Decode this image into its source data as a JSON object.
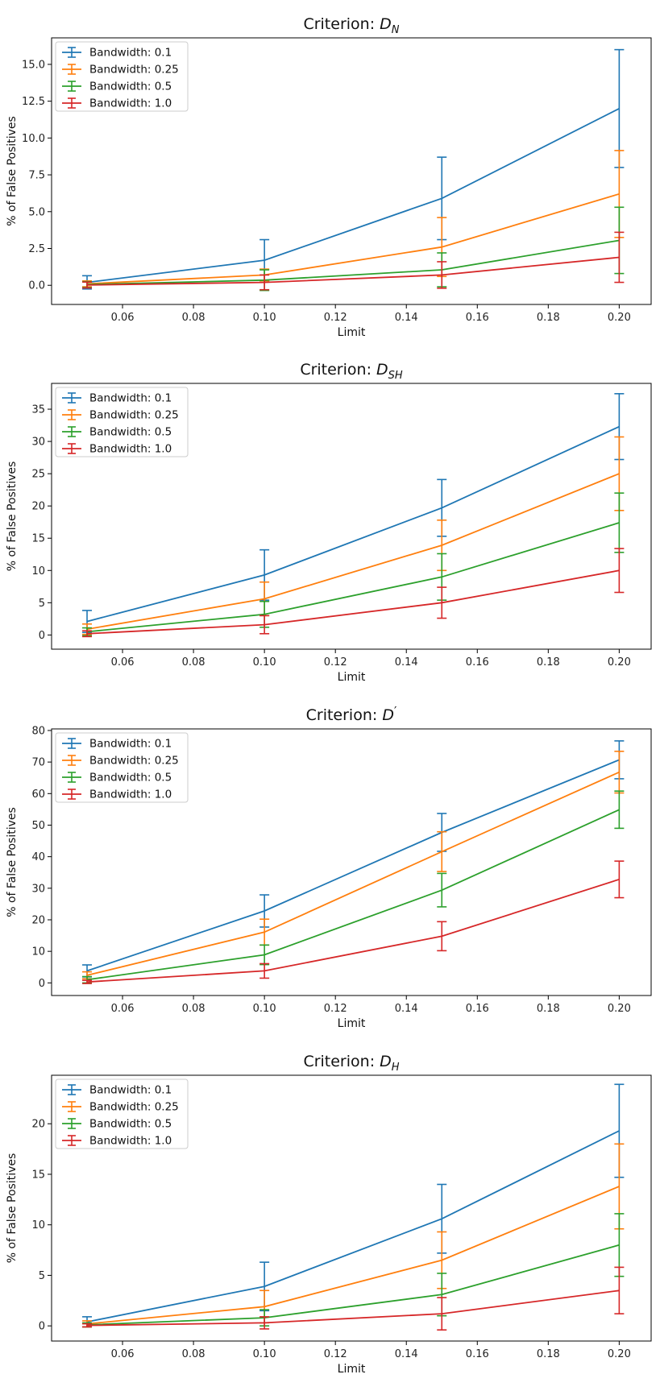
{
  "chart_data": [
    {
      "type": "line",
      "title_prefix": "Criterion: ",
      "title_symbol": "D",
      "title_sub": "N",
      "title_prime": "",
      "xlabel": "Limit",
      "ylabel": "% of False Positives",
      "x": [
        0.05,
        0.1,
        0.15,
        0.2
      ],
      "xlim": [
        0.04,
        0.209
      ],
      "xticks": [
        0.06,
        0.08,
        0.1,
        0.12,
        0.14,
        0.16,
        0.18,
        0.2
      ],
      "xtick_labels": [
        "0.06",
        "0.08",
        "0.10",
        "0.12",
        "0.14",
        "0.16",
        "0.18",
        "0.20"
      ],
      "ylim": [
        -1.3,
        16.8
      ],
      "yticks": [
        0,
        2.5,
        5,
        7.5,
        10,
        12.5,
        15
      ],
      "ytick_labels": [
        "0.0",
        "2.5",
        "5.0",
        "7.5",
        "10.0",
        "12.5",
        "15.0"
      ],
      "legend_position": "top-left",
      "series": [
        {
          "name": "Bandwidth: 0.1",
          "color": "#1f77b4",
          "values": [
            0.2,
            1.7,
            5.9,
            12.0
          ],
          "errors": [
            0.45,
            1.4,
            2.8,
            4.0
          ]
        },
        {
          "name": "Bandwidth: 0.25",
          "color": "#ff7f0e",
          "values": [
            0.1,
            0.7,
            2.6,
            6.2
          ],
          "errors": [
            0.2,
            0.4,
            2.0,
            2.95
          ]
        },
        {
          "name": "Bandwidth: 0.5",
          "color": "#2ca02c",
          "values": [
            0.05,
            0.35,
            1.05,
            3.05
          ],
          "errors": [
            0.2,
            0.7,
            1.15,
            2.25
          ]
        },
        {
          "name": "Bandwidth: 1.0",
          "color": "#d62728",
          "values": [
            0.02,
            0.2,
            0.7,
            1.9
          ],
          "errors": [
            0.2,
            0.5,
            0.9,
            1.7
          ]
        }
      ]
    },
    {
      "type": "line",
      "title_prefix": "Criterion: ",
      "title_symbol": "D",
      "title_sub": "SH",
      "title_prime": "",
      "xlabel": "Limit",
      "ylabel": "% of False Positives",
      "x": [
        0.05,
        0.1,
        0.15,
        0.2
      ],
      "xlim": [
        0.04,
        0.209
      ],
      "xticks": [
        0.06,
        0.08,
        0.1,
        0.12,
        0.14,
        0.16,
        0.18,
        0.2
      ],
      "xtick_labels": [
        "0.06",
        "0.08",
        "0.10",
        "0.12",
        "0.14",
        "0.16",
        "0.18",
        "0.20"
      ],
      "ylim": [
        -2.2,
        39.0
      ],
      "yticks": [
        0,
        5,
        10,
        15,
        20,
        25,
        30,
        35
      ],
      "ytick_labels": [
        "0",
        "5",
        "10",
        "15",
        "20",
        "25",
        "30",
        "35"
      ],
      "legend_position": "top-left",
      "series": [
        {
          "name": "Bandwidth: 0.1",
          "color": "#1f77b4",
          "values": [
            2.1,
            9.3,
            19.7,
            32.3
          ],
          "errors": [
            1.7,
            3.9,
            4.4,
            5.1
          ]
        },
        {
          "name": "Bandwidth: 0.25",
          "color": "#ff7f0e",
          "values": [
            0.9,
            5.6,
            13.9,
            25.0
          ],
          "errors": [
            0.8,
            2.6,
            3.9,
            5.7
          ]
        },
        {
          "name": "Bandwidth: 0.5",
          "color": "#2ca02c",
          "values": [
            0.5,
            3.2,
            9.0,
            17.4
          ],
          "errors": [
            0.6,
            2.0,
            3.6,
            4.6
          ]
        },
        {
          "name": "Bandwidth: 1.0",
          "color": "#d62728",
          "values": [
            0.2,
            1.6,
            5.0,
            10.0
          ],
          "errors": [
            0.45,
            1.4,
            2.4,
            3.4
          ]
        }
      ]
    },
    {
      "type": "line",
      "title_prefix": "Criterion: ",
      "title_symbol": "D",
      "title_sub": "",
      "title_prime": "′",
      "xlabel": "Limit",
      "ylabel": "% of False Positives",
      "x": [
        0.05,
        0.1,
        0.15,
        0.2
      ],
      "xlim": [
        0.04,
        0.209
      ],
      "xticks": [
        0.06,
        0.08,
        0.1,
        0.12,
        0.14,
        0.16,
        0.18,
        0.2
      ],
      "xtick_labels": [
        "0.06",
        "0.08",
        "0.10",
        "0.12",
        "0.14",
        "0.16",
        "0.18",
        "0.20"
      ],
      "ylim": [
        -4.0,
        80.5
      ],
      "yticks": [
        0,
        10,
        20,
        30,
        40,
        50,
        60,
        70,
        80
      ],
      "ytick_labels": [
        "0",
        "10",
        "20",
        "30",
        "40",
        "50",
        "60",
        "70",
        "80"
      ],
      "legend_position": "top-left",
      "series": [
        {
          "name": "Bandwidth: 0.1",
          "color": "#1f77b4",
          "values": [
            3.8,
            22.8,
            47.7,
            70.7
          ],
          "errors": [
            1.9,
            5.1,
            6.0,
            6.0
          ]
        },
        {
          "name": "Bandwidth: 0.25",
          "color": "#ff7f0e",
          "values": [
            2.4,
            16.1,
            41.6,
            66.8
          ],
          "errors": [
            1.1,
            4.1,
            6.3,
            6.6
          ]
        },
        {
          "name": "Bandwidth: 0.5",
          "color": "#2ca02c",
          "values": [
            1.0,
            8.9,
            29.4,
            54.9
          ],
          "errors": [
            1.0,
            3.1,
            5.3,
            5.9
          ]
        },
        {
          "name": "Bandwidth: 1.0",
          "color": "#d62728",
          "values": [
            0.3,
            3.8,
            14.8,
            32.8
          ],
          "errors": [
            0.5,
            2.3,
            4.6,
            5.8
          ]
        }
      ]
    },
    {
      "type": "line",
      "title_prefix": "Criterion: ",
      "title_symbol": "D",
      "title_sub": "H",
      "title_prime": "",
      "xlabel": "Limit",
      "ylabel": "% of False Positives",
      "x": [
        0.05,
        0.1,
        0.15,
        0.2
      ],
      "xlim": [
        0.04,
        0.209
      ],
      "xticks": [
        0.06,
        0.08,
        0.1,
        0.12,
        0.14,
        0.16,
        0.18,
        0.2
      ],
      "xtick_labels": [
        "0.06",
        "0.08",
        "0.10",
        "0.12",
        "0.14",
        "0.16",
        "0.18",
        "0.20"
      ],
      "ylim": [
        -1.5,
        24.8
      ],
      "yticks": [
        0,
        5,
        10,
        15,
        20
      ],
      "ytick_labels": [
        "0",
        "5",
        "10",
        "15",
        "20"
      ],
      "legend_position": "top-left",
      "series": [
        {
          "name": "Bandwidth: 0.1",
          "color": "#1f77b4",
          "values": [
            0.4,
            3.9,
            10.6,
            19.3
          ],
          "errors": [
            0.5,
            2.4,
            3.4,
            4.6
          ]
        },
        {
          "name": "Bandwidth: 0.25",
          "color": "#ff7f0e",
          "values": [
            0.2,
            1.9,
            6.5,
            13.8
          ],
          "errors": [
            0.3,
            1.6,
            2.8,
            4.2
          ]
        },
        {
          "name": "Bandwidth: 0.5",
          "color": "#2ca02c",
          "values": [
            0.1,
            0.8,
            3.1,
            8.0
          ],
          "errors": [
            0.2,
            0.8,
            2.1,
            3.1
          ]
        },
        {
          "name": "Bandwidth: 1.0",
          "color": "#d62728",
          "values": [
            0.05,
            0.3,
            1.2,
            3.5
          ],
          "errors": [
            0.15,
            0.6,
            1.6,
            2.3
          ]
        }
      ]
    }
  ]
}
